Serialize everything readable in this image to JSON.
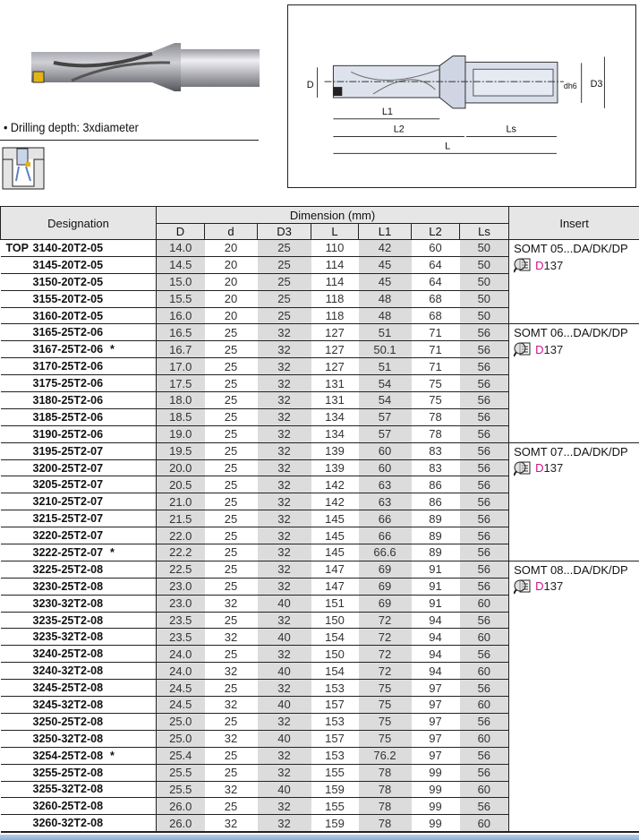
{
  "feature": {
    "drilling_depth": "• Drilling depth: 3xdiameter"
  },
  "diagram_labels": {
    "D": "D",
    "dh6": "dh6",
    "D3": "D3",
    "L1": "L1",
    "L2": "L2",
    "Ls": "Ls",
    "L": "L"
  },
  "table": {
    "designation_header": "Designation",
    "dimension_header": "Dimension (mm)",
    "insert_header": "Insert",
    "columns": [
      "D",
      "d",
      "D3",
      "L",
      "L1",
      "L2",
      "Ls"
    ],
    "top_label": "TOP",
    "groups": [
      {
        "insert": "SOMT 05...DA/DK/DP",
        "ref": "D137",
        "icon": "catalog-lookup-icon",
        "rows": [
          [
            "3140-20T2-05",
            "14.0",
            "20",
            "25",
            "110",
            "42",
            "60",
            "50",
            ""
          ],
          [
            "3145-20T2-05",
            "14.5",
            "20",
            "25",
            "114",
            "45",
            "64",
            "50",
            ""
          ],
          [
            "3150-20T2-05",
            "15.0",
            "20",
            "25",
            "114",
            "45",
            "64",
            "50",
            ""
          ],
          [
            "3155-20T2-05",
            "15.5",
            "20",
            "25",
            "118",
            "48",
            "68",
            "50",
            ""
          ],
          [
            "3160-20T2-05",
            "16.0",
            "20",
            "25",
            "118",
            "48",
            "68",
            "50",
            ""
          ]
        ]
      },
      {
        "insert": "SOMT 06...DA/DK/DP",
        "ref": "D137",
        "icon": "catalog-lookup-icon",
        "rows": [
          [
            "3165-25T2-06",
            "16.5",
            "25",
            "32",
            "127",
            "51",
            "71",
            "56",
            ""
          ],
          [
            "3167-25T2-06",
            "16.7",
            "25",
            "32",
            "127",
            "50.1",
            "71",
            "56",
            "*"
          ],
          [
            "3170-25T2-06",
            "17.0",
            "25",
            "32",
            "127",
            "51",
            "71",
            "56",
            ""
          ],
          [
            "3175-25T2-06",
            "17.5",
            "25",
            "32",
            "131",
            "54",
            "75",
            "56",
            ""
          ],
          [
            "3180-25T2-06",
            "18.0",
            "25",
            "32",
            "131",
            "54",
            "75",
            "56",
            ""
          ],
          [
            "3185-25T2-06",
            "18.5",
            "25",
            "32",
            "134",
            "57",
            "78",
            "56",
            ""
          ],
          [
            "3190-25T2-06",
            "19.0",
            "25",
            "32",
            "134",
            "57",
            "78",
            "56",
            ""
          ]
        ]
      },
      {
        "insert": "SOMT 07...DA/DK/DP",
        "ref": "D137",
        "icon": "catalog-lookup-icon",
        "rows": [
          [
            "3195-25T2-07",
            "19.5",
            "25",
            "32",
            "139",
            "60",
            "83",
            "56",
            ""
          ],
          [
            "3200-25T2-07",
            "20.0",
            "25",
            "32",
            "139",
            "60",
            "83",
            "56",
            ""
          ],
          [
            "3205-25T2-07",
            "20.5",
            "25",
            "32",
            "142",
            "63",
            "86",
            "56",
            ""
          ],
          [
            "3210-25T2-07",
            "21.0",
            "25",
            "32",
            "142",
            "63",
            "86",
            "56",
            ""
          ],
          [
            "3215-25T2-07",
            "21.5",
            "25",
            "32",
            "145",
            "66",
            "89",
            "56",
            ""
          ],
          [
            "3220-25T2-07",
            "22.0",
            "25",
            "32",
            "145",
            "66",
            "89",
            "56",
            ""
          ],
          [
            "3222-25T2-07",
            "22.2",
            "25",
            "32",
            "145",
            "66.6",
            "89",
            "56",
            "*"
          ]
        ]
      },
      {
        "insert": "SOMT 08...DA/DK/DP",
        "ref": "D137",
        "icon": "catalog-lookup-icon",
        "rows": [
          [
            "3225-25T2-08",
            "22.5",
            "25",
            "32",
            "147",
            "69",
            "91",
            "56",
            ""
          ],
          [
            "3230-25T2-08",
            "23.0",
            "25",
            "32",
            "147",
            "69",
            "91",
            "56",
            ""
          ],
          [
            "3230-32T2-08",
            "23.0",
            "32",
            "40",
            "151",
            "69",
            "91",
            "60",
            ""
          ],
          [
            "3235-25T2-08",
            "23.5",
            "25",
            "32",
            "150",
            "72",
            "94",
            "56",
            ""
          ],
          [
            "3235-32T2-08",
            "23.5",
            "32",
            "40",
            "154",
            "72",
            "94",
            "60",
            ""
          ],
          [
            "3240-25T2-08",
            "24.0",
            "25",
            "32",
            "150",
            "72",
            "94",
            "56",
            ""
          ],
          [
            "3240-32T2-08",
            "24.0",
            "32",
            "40",
            "154",
            "72",
            "94",
            "60",
            ""
          ],
          [
            "3245-25T2-08",
            "24.5",
            "25",
            "32",
            "153",
            "75",
            "97",
            "56",
            ""
          ],
          [
            "3245-32T2-08",
            "24.5",
            "32",
            "40",
            "157",
            "75",
            "97",
            "60",
            ""
          ],
          [
            "3250-25T2-08",
            "25.0",
            "25",
            "32",
            "153",
            "75",
            "97",
            "56",
            ""
          ],
          [
            "3250-32T2-08",
            "25.0",
            "32",
            "40",
            "157",
            "75",
            "97",
            "60",
            ""
          ],
          [
            "3254-25T2-08",
            "25.4",
            "25",
            "32",
            "153",
            "76.2",
            "97",
            "56",
            "*"
          ],
          [
            "3255-25T2-08",
            "25.5",
            "25",
            "32",
            "155",
            "78",
            "99",
            "56",
            ""
          ],
          [
            "3255-32T2-08",
            "25.5",
            "32",
            "40",
            "159",
            "78",
            "99",
            "60",
            ""
          ],
          [
            "3260-25T2-08",
            "26.0",
            "25",
            "32",
            "155",
            "78",
            "99",
            "56",
            ""
          ],
          [
            "3260-32T2-08",
            "26.0",
            "32",
            "32",
            "159",
            "78",
            "99",
            "60",
            ""
          ]
        ]
      }
    ]
  },
  "colors": {
    "ref": "#d0108c",
    "shade": "#dcdcdc",
    "header": "#e6e6e6"
  }
}
